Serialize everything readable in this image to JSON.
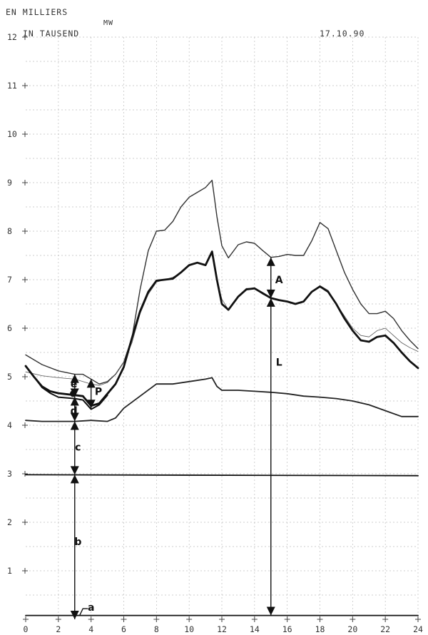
{
  "header": {
    "unit_fr": "EN MILLIERS",
    "unit_mw": "MW",
    "unit_de": "IN TAUSEND",
    "date": "17.10.90"
  },
  "chart_data": {
    "type": "line",
    "xlim": [
      0,
      24
    ],
    "ylim": [
      0,
      12
    ],
    "x_ticks": [
      "0",
      "2",
      "4",
      "6",
      "8",
      "10",
      "12",
      "14",
      "16",
      "18",
      "20",
      "22",
      "24"
    ],
    "y_ticks": [
      "1",
      "2",
      "3",
      "4",
      "5",
      "6",
      "7",
      "8",
      "9",
      "10",
      "11",
      "12"
    ],
    "grid": true,
    "series": [
      {
        "key": "upper",
        "stroke": "#333333",
        "width": 1.4,
        "points": [
          [
            0,
            5.45
          ],
          [
            1,
            5.25
          ],
          [
            2,
            5.12
          ],
          [
            3,
            5.05
          ],
          [
            3.5,
            5.05
          ],
          [
            4,
            4.95
          ],
          [
            4.5,
            4.85
          ],
          [
            5,
            4.9
          ],
          [
            5.5,
            5.05
          ],
          [
            6,
            5.3
          ],
          [
            6.5,
            5.8
          ],
          [
            7,
            6.8
          ],
          [
            7.5,
            7.6
          ],
          [
            8,
            8.0
          ],
          [
            8.5,
            8.02
          ],
          [
            9,
            8.2
          ],
          [
            9.5,
            8.5
          ],
          [
            10,
            8.7
          ],
          [
            10.5,
            8.8
          ],
          [
            11,
            8.9
          ],
          [
            11.4,
            9.05
          ],
          [
            11.7,
            8.3
          ],
          [
            12,
            7.7
          ],
          [
            12.4,
            7.45
          ],
          [
            13,
            7.72
          ],
          [
            13.5,
            7.78
          ],
          [
            14,
            7.75
          ],
          [
            14.5,
            7.6
          ],
          [
            15,
            7.46
          ],
          [
            15.5,
            7.48
          ],
          [
            16,
            7.52
          ],
          [
            16.5,
            7.5
          ],
          [
            17,
            7.5
          ],
          [
            17.5,
            7.8
          ],
          [
            18,
            8.18
          ],
          [
            18.5,
            8.05
          ],
          [
            19,
            7.6
          ],
          [
            19.5,
            7.15
          ],
          [
            20,
            6.8
          ],
          [
            20.5,
            6.5
          ],
          [
            21,
            6.3
          ],
          [
            21.5,
            6.3
          ],
          [
            22,
            6.35
          ],
          [
            22.5,
            6.2
          ],
          [
            23,
            5.95
          ],
          [
            23.5,
            5.75
          ],
          [
            24,
            5.58
          ]
        ]
      },
      {
        "key": "thin",
        "stroke": "#555555",
        "width": 0.8,
        "points": [
          [
            0,
            5.1
          ],
          [
            1,
            5.02
          ],
          [
            2,
            4.98
          ],
          [
            3,
            4.95
          ],
          [
            3.5,
            4.9
          ],
          [
            4,
            4.85
          ],
          [
            4.5,
            4.82
          ],
          [
            5,
            4.88
          ],
          [
            5.5,
            5.05
          ],
          [
            6,
            5.3
          ],
          [
            6.5,
            5.7
          ],
          [
            7,
            6.3
          ],
          [
            7.5,
            6.7
          ],
          [
            8,
            6.95
          ],
          [
            8.5,
            7.0
          ],
          [
            9,
            7.05
          ],
          [
            9.5,
            7.15
          ],
          [
            10,
            7.3
          ],
          [
            10.5,
            7.35
          ],
          [
            11,
            7.3
          ],
          [
            11.4,
            7.6
          ],
          [
            11.7,
            7.0
          ],
          [
            12,
            6.6
          ],
          [
            12.4,
            6.38
          ],
          [
            13,
            6.65
          ],
          [
            13.5,
            6.82
          ],
          [
            14,
            6.82
          ],
          [
            14.5,
            6.7
          ],
          [
            15,
            6.62
          ],
          [
            15.5,
            6.58
          ],
          [
            16,
            6.55
          ],
          [
            16.5,
            6.5
          ],
          [
            17,
            6.55
          ],
          [
            17.5,
            6.75
          ],
          [
            18,
            6.88
          ],
          [
            18.5,
            6.78
          ],
          [
            19,
            6.5
          ],
          [
            19.5,
            6.25
          ],
          [
            20,
            6.0
          ],
          [
            20.5,
            5.85
          ],
          [
            21,
            5.82
          ],
          [
            21.5,
            5.95
          ],
          [
            22,
            6.0
          ],
          [
            22.5,
            5.85
          ],
          [
            23,
            5.7
          ],
          [
            23.5,
            5.6
          ],
          [
            24,
            5.52
          ]
        ]
      },
      {
        "key": "load",
        "stroke": "#111111",
        "width": 2.8,
        "points": [
          [
            0,
            5.22
          ],
          [
            0.5,
            5.0
          ],
          [
            1,
            4.8
          ],
          [
            1.5,
            4.7
          ],
          [
            2,
            4.66
          ],
          [
            3,
            4.62
          ],
          [
            3.5,
            4.6
          ],
          [
            4,
            4.4
          ],
          [
            4.5,
            4.45
          ],
          [
            5,
            4.65
          ],
          [
            5.5,
            4.85
          ],
          [
            6,
            5.2
          ],
          [
            6.5,
            5.8
          ],
          [
            7,
            6.35
          ],
          [
            7.5,
            6.75
          ],
          [
            8,
            6.98
          ],
          [
            8.5,
            7.0
          ],
          [
            9,
            7.02
          ],
          [
            9.5,
            7.15
          ],
          [
            10,
            7.3
          ],
          [
            10.5,
            7.35
          ],
          [
            11,
            7.3
          ],
          [
            11.4,
            7.58
          ],
          [
            11.7,
            7.0
          ],
          [
            12,
            6.5
          ],
          [
            12.4,
            6.38
          ],
          [
            13,
            6.65
          ],
          [
            13.5,
            6.8
          ],
          [
            14,
            6.82
          ],
          [
            14.5,
            6.72
          ],
          [
            15,
            6.62
          ],
          [
            15.5,
            6.58
          ],
          [
            16,
            6.55
          ],
          [
            16.5,
            6.5
          ],
          [
            17,
            6.55
          ],
          [
            17.5,
            6.75
          ],
          [
            18,
            6.86
          ],
          [
            18.5,
            6.75
          ],
          [
            19,
            6.5
          ],
          [
            19.5,
            6.2
          ],
          [
            20,
            5.95
          ],
          [
            20.5,
            5.75
          ],
          [
            21,
            5.72
          ],
          [
            21.5,
            5.82
          ],
          [
            22,
            5.85
          ],
          [
            22.5,
            5.7
          ],
          [
            23,
            5.5
          ],
          [
            23.5,
            5.32
          ],
          [
            24,
            5.18
          ]
        ]
      },
      {
        "key": "mid",
        "stroke": "#111111",
        "width": 2.0,
        "points": [
          [
            0,
            5.22
          ],
          [
            0.5,
            5.0
          ],
          [
            1,
            4.78
          ],
          [
            1.5,
            4.66
          ],
          [
            2,
            4.58
          ],
          [
            3,
            4.55
          ],
          [
            3.5,
            4.52
          ],
          [
            4,
            4.33
          ],
          [
            4.5,
            4.42
          ],
          [
            5,
            4.62
          ]
        ]
      },
      {
        "key": "base",
        "stroke": "#222222",
        "width": 1.8,
        "points": [
          [
            0,
            4.1
          ],
          [
            1,
            4.08
          ],
          [
            2,
            4.08
          ],
          [
            3,
            4.08
          ],
          [
            4,
            4.1
          ],
          [
            5,
            4.08
          ],
          [
            5.5,
            4.15
          ],
          [
            6,
            4.35
          ],
          [
            7,
            4.6
          ],
          [
            8,
            4.85
          ],
          [
            9,
            4.85
          ],
          [
            10,
            4.9
          ],
          [
            11,
            4.95
          ],
          [
            11.4,
            4.98
          ],
          [
            11.7,
            4.8
          ],
          [
            12,
            4.72
          ],
          [
            13,
            4.72
          ],
          [
            14,
            4.7
          ],
          [
            15,
            4.68
          ],
          [
            16,
            4.65
          ],
          [
            17,
            4.6
          ],
          [
            18,
            4.58
          ],
          [
            19,
            4.55
          ],
          [
            20,
            4.5
          ],
          [
            21,
            4.42
          ],
          [
            22,
            4.3
          ],
          [
            23,
            4.18
          ],
          [
            24,
            4.18
          ]
        ]
      },
      {
        "key": "level3",
        "stroke": "#111111",
        "width": 1.8,
        "points": [
          [
            0,
            2.98
          ],
          [
            24,
            2.96
          ]
        ]
      },
      {
        "key": "level_a",
        "stroke": "#111111",
        "width": 1.8,
        "points": [
          [
            0,
            0.08
          ],
          [
            24,
            0.08
          ]
        ]
      }
    ],
    "annotations": [
      {
        "label": "a",
        "x": 4.0,
        "y": 0.25
      },
      {
        "label": "b",
        "x": 3.2,
        "y": 1.6
      },
      {
        "label": "c",
        "x": 3.2,
        "y": 3.55
      },
      {
        "label": "d",
        "x": 2.95,
        "y": 4.3
      },
      {
        "label": "e",
        "x": 2.95,
        "y": 4.85
      },
      {
        "label": "P",
        "x": 4.45,
        "y": 4.7
      },
      {
        "label": "A",
        "x": 15.5,
        "y": 7.0
      },
      {
        "label": "L",
        "x": 15.5,
        "y": 5.3
      }
    ],
    "marker_point": {
      "x": 2.9,
      "y": 4.65
    },
    "vertical_arrows": [
      {
        "x": 3.0,
        "y_from": 0.0,
        "y_to": 2.98
      },
      {
        "x": 3.0,
        "y_from": 2.98,
        "y_to": 4.08
      },
      {
        "x": 3.0,
        "y_from": 4.08,
        "y_to": 4.58
      },
      {
        "x": 3.0,
        "y_from": 4.58,
        "y_to": 5.05
      },
      {
        "x": 4.0,
        "y_from": 4.35,
        "y_to": 4.95
      },
      {
        "x": 15.0,
        "y_from": 0.08,
        "y_to": 6.62
      },
      {
        "x": 15.0,
        "y_from": 6.62,
        "y_to": 7.46
      }
    ]
  }
}
